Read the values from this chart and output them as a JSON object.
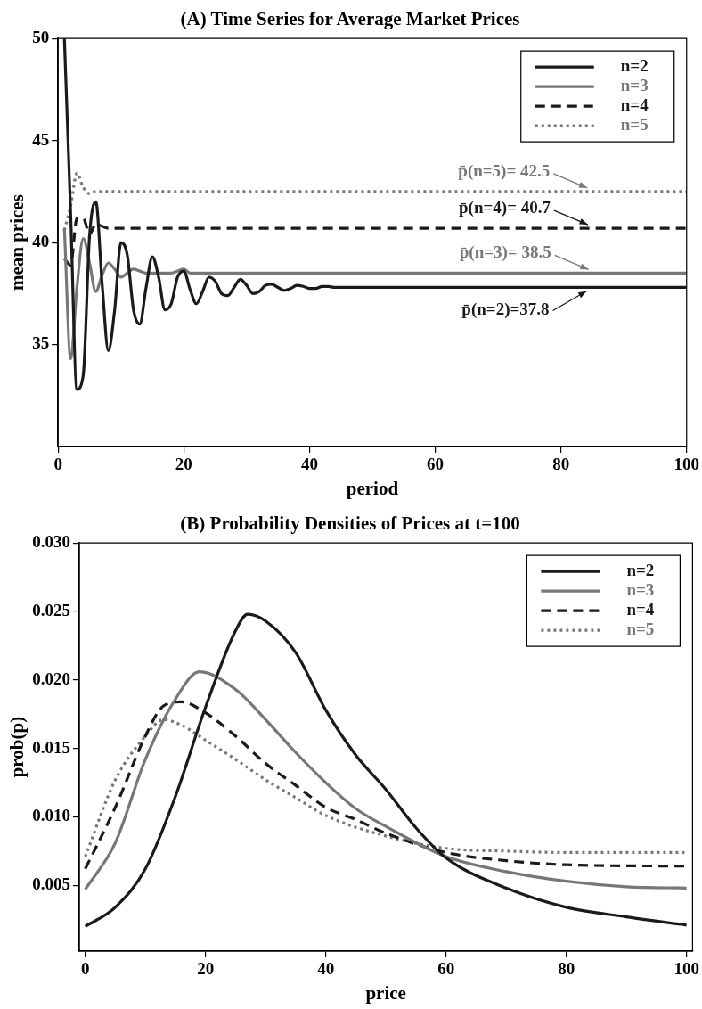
{
  "chart_data": [
    {
      "type": "line",
      "title": "(A) Time Series for Average Market Prices",
      "xlabel": "period",
      "ylabel": "mean prices",
      "xlim": [
        0,
        100
      ],
      "xticks": [
        0,
        20,
        40,
        60,
        80,
        100
      ],
      "ylim": [
        30,
        50
      ],
      "yticks": [
        35,
        40,
        45,
        50
      ],
      "grid": false,
      "legend": "top right",
      "series": [
        {
          "name": "n=2",
          "color": "#1a1a1a",
          "line_style": "solid",
          "x": [
            1,
            2,
            3,
            4,
            5,
            6,
            7,
            8,
            9,
            10,
            11,
            12,
            13,
            14,
            15,
            16,
            17,
            18,
            19,
            20,
            21,
            22,
            23,
            24,
            25,
            26,
            27,
            28,
            29,
            30,
            31,
            32,
            33,
            34,
            35,
            36,
            37,
            38,
            39,
            40,
            41,
            42,
            43,
            44,
            45,
            100
          ],
          "values": [
            50,
            41.4,
            32.8,
            33.5,
            40.3,
            42.0,
            38.0,
            34.7,
            36.7,
            40.0,
            39.4,
            36.7,
            36.0,
            37.8,
            39.3,
            38.3,
            36.7,
            37.0,
            38.3,
            38.6,
            37.7,
            37.0,
            37.6,
            38.3,
            38.1,
            37.5,
            37.4,
            37.8,
            38.2,
            37.9,
            37.5,
            37.6,
            37.9,
            37.95,
            37.8,
            37.65,
            37.75,
            37.9,
            37.85,
            37.75,
            37.75,
            37.85,
            37.85,
            37.8,
            37.8,
            37.8
          ]
        },
        {
          "name": "n=3",
          "color": "#777777",
          "line_style": "solid",
          "x": [
            1,
            2,
            3,
            4,
            5,
            6,
            7,
            8,
            9,
            10,
            11,
            12,
            13,
            14,
            15,
            16,
            17,
            18,
            19,
            20,
            21,
            22,
            100
          ],
          "values": [
            40.7,
            34.3,
            37.8,
            40.2,
            39.0,
            37.6,
            38.4,
            39.0,
            38.7,
            38.3,
            38.5,
            38.7,
            38.6,
            38.5,
            38.5,
            38.5,
            38.5,
            38.5,
            38.6,
            38.7,
            38.5,
            38.5,
            38.5
          ]
        },
        {
          "name": "n=4",
          "color": "#1a1a1a",
          "line_style": "dashed",
          "x": [
            1,
            2,
            3,
            4,
            5,
            6,
            7,
            8,
            9,
            100
          ],
          "values": [
            39.2,
            38.9,
            41.2,
            41.2,
            40.4,
            40.9,
            40.8,
            40.7,
            40.7,
            40.7
          ]
        },
        {
          "name": "n=5",
          "color": "#777777",
          "line_style": "dotted",
          "x": [
            1,
            2,
            3,
            4,
            5,
            6,
            7,
            100
          ],
          "values": [
            40.6,
            41.8,
            43.4,
            42.7,
            42.4,
            42.5,
            42.5,
            42.5
          ]
        }
      ],
      "annotations": [
        {
          "text": "p̄(n=5)= 42.5",
          "x": 84.2,
          "y": 42.5
        },
        {
          "text": "p̄(n=4)= 40.7",
          "x": 84.3,
          "y": 40.7
        },
        {
          "text": "p̄(n=3)= 38.5",
          "x": 84.4,
          "y": 38.5
        },
        {
          "text": "p̄(n=2)=37.8",
          "x": 84.1,
          "y": 37.8
        }
      ]
    },
    {
      "type": "line",
      "title": "(B) Probability Densities of Prices at t=100",
      "xlabel": "price",
      "ylabel": "prob(p)",
      "xlim": [
        -1,
        101
      ],
      "xticks": [
        0,
        20,
        40,
        60,
        80,
        100
      ],
      "ylim": [
        0.0002,
        0.03
      ],
      "yticks": [
        0.005,
        {
          "value": 0.01,
          "label": "0.010"
        },
        0.015,
        {
          "value": 0.02,
          "label": "0.020"
        },
        0.025,
        {
          "value": 0.03,
          "label": "0.030"
        }
      ],
      "grid": false,
      "legend": "top right",
      "series": [
        {
          "name": "n=2",
          "color": "#1a1a1a",
          "line_style": "solid",
          "x": [
            0,
            5,
            10,
            15,
            20,
            25,
            27,
            30,
            35,
            40,
            45,
            50,
            55,
            60,
            70,
            80,
            90,
            100
          ],
          "values": [
            0.002,
            0.0034,
            0.0062,
            0.0115,
            0.018,
            0.0236,
            0.0248,
            0.0243,
            0.022,
            0.0178,
            0.0145,
            0.012,
            0.0092,
            0.007,
            0.0048,
            0.0034,
            0.0027,
            0.0021
          ]
        },
        {
          "name": "n=3",
          "color": "#777777",
          "line_style": "solid",
          "x": [
            0,
            5,
            10,
            15,
            19,
            25,
            30,
            35,
            40,
            45,
            50,
            60,
            70,
            80,
            90,
            100
          ],
          "values": [
            0.0047,
            0.0081,
            0.0142,
            0.0186,
            0.0206,
            0.0193,
            0.0171,
            0.0147,
            0.0125,
            0.0106,
            0.0093,
            0.0071,
            0.006,
            0.0053,
            0.0049,
            0.0048
          ]
        },
        {
          "name": "n=4",
          "color": "#1a1a1a",
          "line_style": "dashed",
          "x": [
            0,
            5,
            10,
            13,
            16,
            20,
            25,
            30,
            35,
            40,
            45,
            50,
            60,
            70,
            80,
            100
          ],
          "values": [
            0.0062,
            0.0107,
            0.0159,
            0.0181,
            0.0184,
            0.0176,
            0.0159,
            0.0139,
            0.0123,
            0.0107,
            0.0098,
            0.0088,
            0.0074,
            0.0068,
            0.0065,
            0.0064
          ]
        },
        {
          "name": "n=5",
          "color": "#777777",
          "line_style": "dotted",
          "x": [
            0,
            5,
            10,
            13,
            16,
            20,
            25,
            30,
            35,
            40,
            50,
            60,
            70,
            80,
            100
          ],
          "values": [
            0.0071,
            0.0127,
            0.0159,
            0.0171,
            0.0167,
            0.0156,
            0.0142,
            0.0127,
            0.0114,
            0.0101,
            0.0086,
            0.0077,
            0.0075,
            0.0074,
            0.0074
          ]
        }
      ]
    }
  ]
}
